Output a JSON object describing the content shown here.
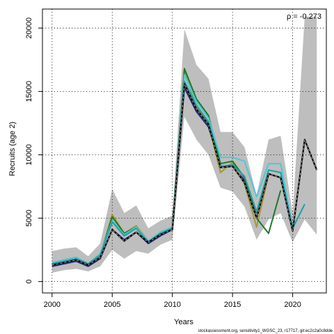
{
  "chart_data": {
    "type": "line",
    "xlabel": "Years",
    "ylabel": "Recruits (age 2)",
    "xlim": [
      1999.2,
      2022.8
    ],
    "ylim": [
      -900,
      21500
    ],
    "xticks": [
      2000,
      2005,
      2010,
      2015,
      2020
    ],
    "yticks": [
      0,
      5000,
      10000,
      15000,
      20000
    ],
    "grid": true,
    "annotation": "ρ = -0.273",
    "footer": "stockassessment.org, sensitivity1_WGSC_23, r17717, git:ec2c2a0c8dde",
    "colors": {
      "band": "#bebebe",
      "base": "#000000",
      "base_light": "#aaaaaa",
      "peel1": "#1f9faa",
      "peel2": "#4dc9d6",
      "peel3": "#1a7a2a",
      "peel4": "#a8962e",
      "peel5": "#2a2a7a"
    },
    "band_x": [
      2000,
      2001,
      2002,
      2003,
      2004,
      2005,
      2006,
      2007,
      2008,
      2009,
      2010,
      2011,
      2012,
      2013,
      2014,
      2015,
      2016,
      2017,
      2018,
      2019,
      2020,
      2021,
      2022
    ],
    "band_lower": [
      700,
      900,
      1000,
      800,
      1200,
      2500,
      1800,
      2400,
      2200,
      2900,
      3300,
      13000,
      11200,
      10000,
      7400,
      7100,
      5900,
      3300,
      4900,
      5400,
      3100,
      4900,
      3700
    ],
    "band_upper": [
      2400,
      2600,
      2700,
      2000,
      3000,
      7300,
      5400,
      6000,
      4200,
      4800,
      5200,
      19900,
      17100,
      16000,
      11800,
      11800,
      10600,
      6800,
      11200,
      11500,
      5400,
      20900,
      20900
    ],
    "series": [
      {
        "key": "base",
        "x": [
          2000,
          2001,
          2002,
          2003,
          2004,
          2005,
          2006,
          2007,
          2008,
          2009,
          2010,
          2011,
          2012,
          2013,
          2014,
          2015,
          2016,
          2017,
          2018,
          2019,
          2020,
          2021,
          2022
        ],
        "values": [
          1300,
          1500,
          1700,
          1300,
          1900,
          4100,
          3200,
          3900,
          3100,
          3700,
          4100,
          15600,
          13600,
          12400,
          9000,
          9100,
          7800,
          5000,
          8500,
          8200,
          4000,
          11200,
          8800
        ]
      },
      {
        "key": "peel1",
        "x": [
          2000,
          2001,
          2002,
          2003,
          2004,
          2005,
          2006,
          2007,
          2008,
          2009,
          2010,
          2011,
          2012,
          2013,
          2014,
          2015,
          2016,
          2017,
          2018,
          2019,
          2020,
          2021
        ],
        "values": [
          1400,
          1600,
          1800,
          1400,
          2100,
          4700,
          3600,
          4200,
          3100,
          3800,
          4200,
          15800,
          13900,
          12600,
          9100,
          9200,
          8300,
          5500,
          8800,
          8600,
          4200,
          6100
        ]
      },
      {
        "key": "peel2",
        "x": [
          2000,
          2001,
          2002,
          2003,
          2004,
          2005,
          2006,
          2007,
          2008,
          2009,
          2010,
          2011,
          2012,
          2013,
          2014,
          2015,
          2016,
          2017,
          2018,
          2019,
          2020
        ],
        "values": [
          1500,
          1700,
          1900,
          1400,
          2200,
          4800,
          3700,
          4300,
          3200,
          3900,
          4300,
          16300,
          14200,
          12900,
          9800,
          9800,
          9500,
          6700,
          9300,
          9300,
          4300
        ]
      },
      {
        "key": "peel3",
        "x": [
          2000,
          2001,
          2002,
          2003,
          2004,
          2005,
          2006,
          2007,
          2008,
          2009,
          2010,
          2011,
          2012,
          2013,
          2014,
          2015,
          2016,
          2017,
          2018,
          2019
        ],
        "values": [
          1400,
          1700,
          1900,
          1400,
          2100,
          5100,
          3800,
          4300,
          3100,
          3800,
          4200,
          16800,
          14400,
          13100,
          9300,
          9500,
          8200,
          5000,
          3800,
          7200
        ]
      },
      {
        "key": "peel4",
        "x": [
          2000,
          2001,
          2002,
          2003,
          2004,
          2005,
          2006,
          2007,
          2008,
          2009,
          2010,
          2011,
          2012,
          2013,
          2014,
          2015,
          2016,
          2017,
          2018
        ],
        "values": [
          1300,
          1500,
          1800,
          1300,
          2000,
          5300,
          3800,
          4400,
          3200,
          3800,
          4300,
          16600,
          13800,
          12400,
          8600,
          9400,
          7700,
          4300,
          8400
        ]
      },
      {
        "key": "peel5",
        "x": [
          2000,
          2001,
          2002,
          2003,
          2004,
          2005,
          2006,
          2007,
          2008,
          2009,
          2010,
          2011,
          2012,
          2013,
          2014,
          2015,
          2016,
          2017
        ],
        "values": [
          1200,
          1400,
          1600,
          1200,
          1800,
          4100,
          3300,
          3900,
          3000,
          3600,
          4100,
          15300,
          13400,
          12200,
          9100,
          9100,
          8000,
          5400
        ]
      }
    ]
  }
}
